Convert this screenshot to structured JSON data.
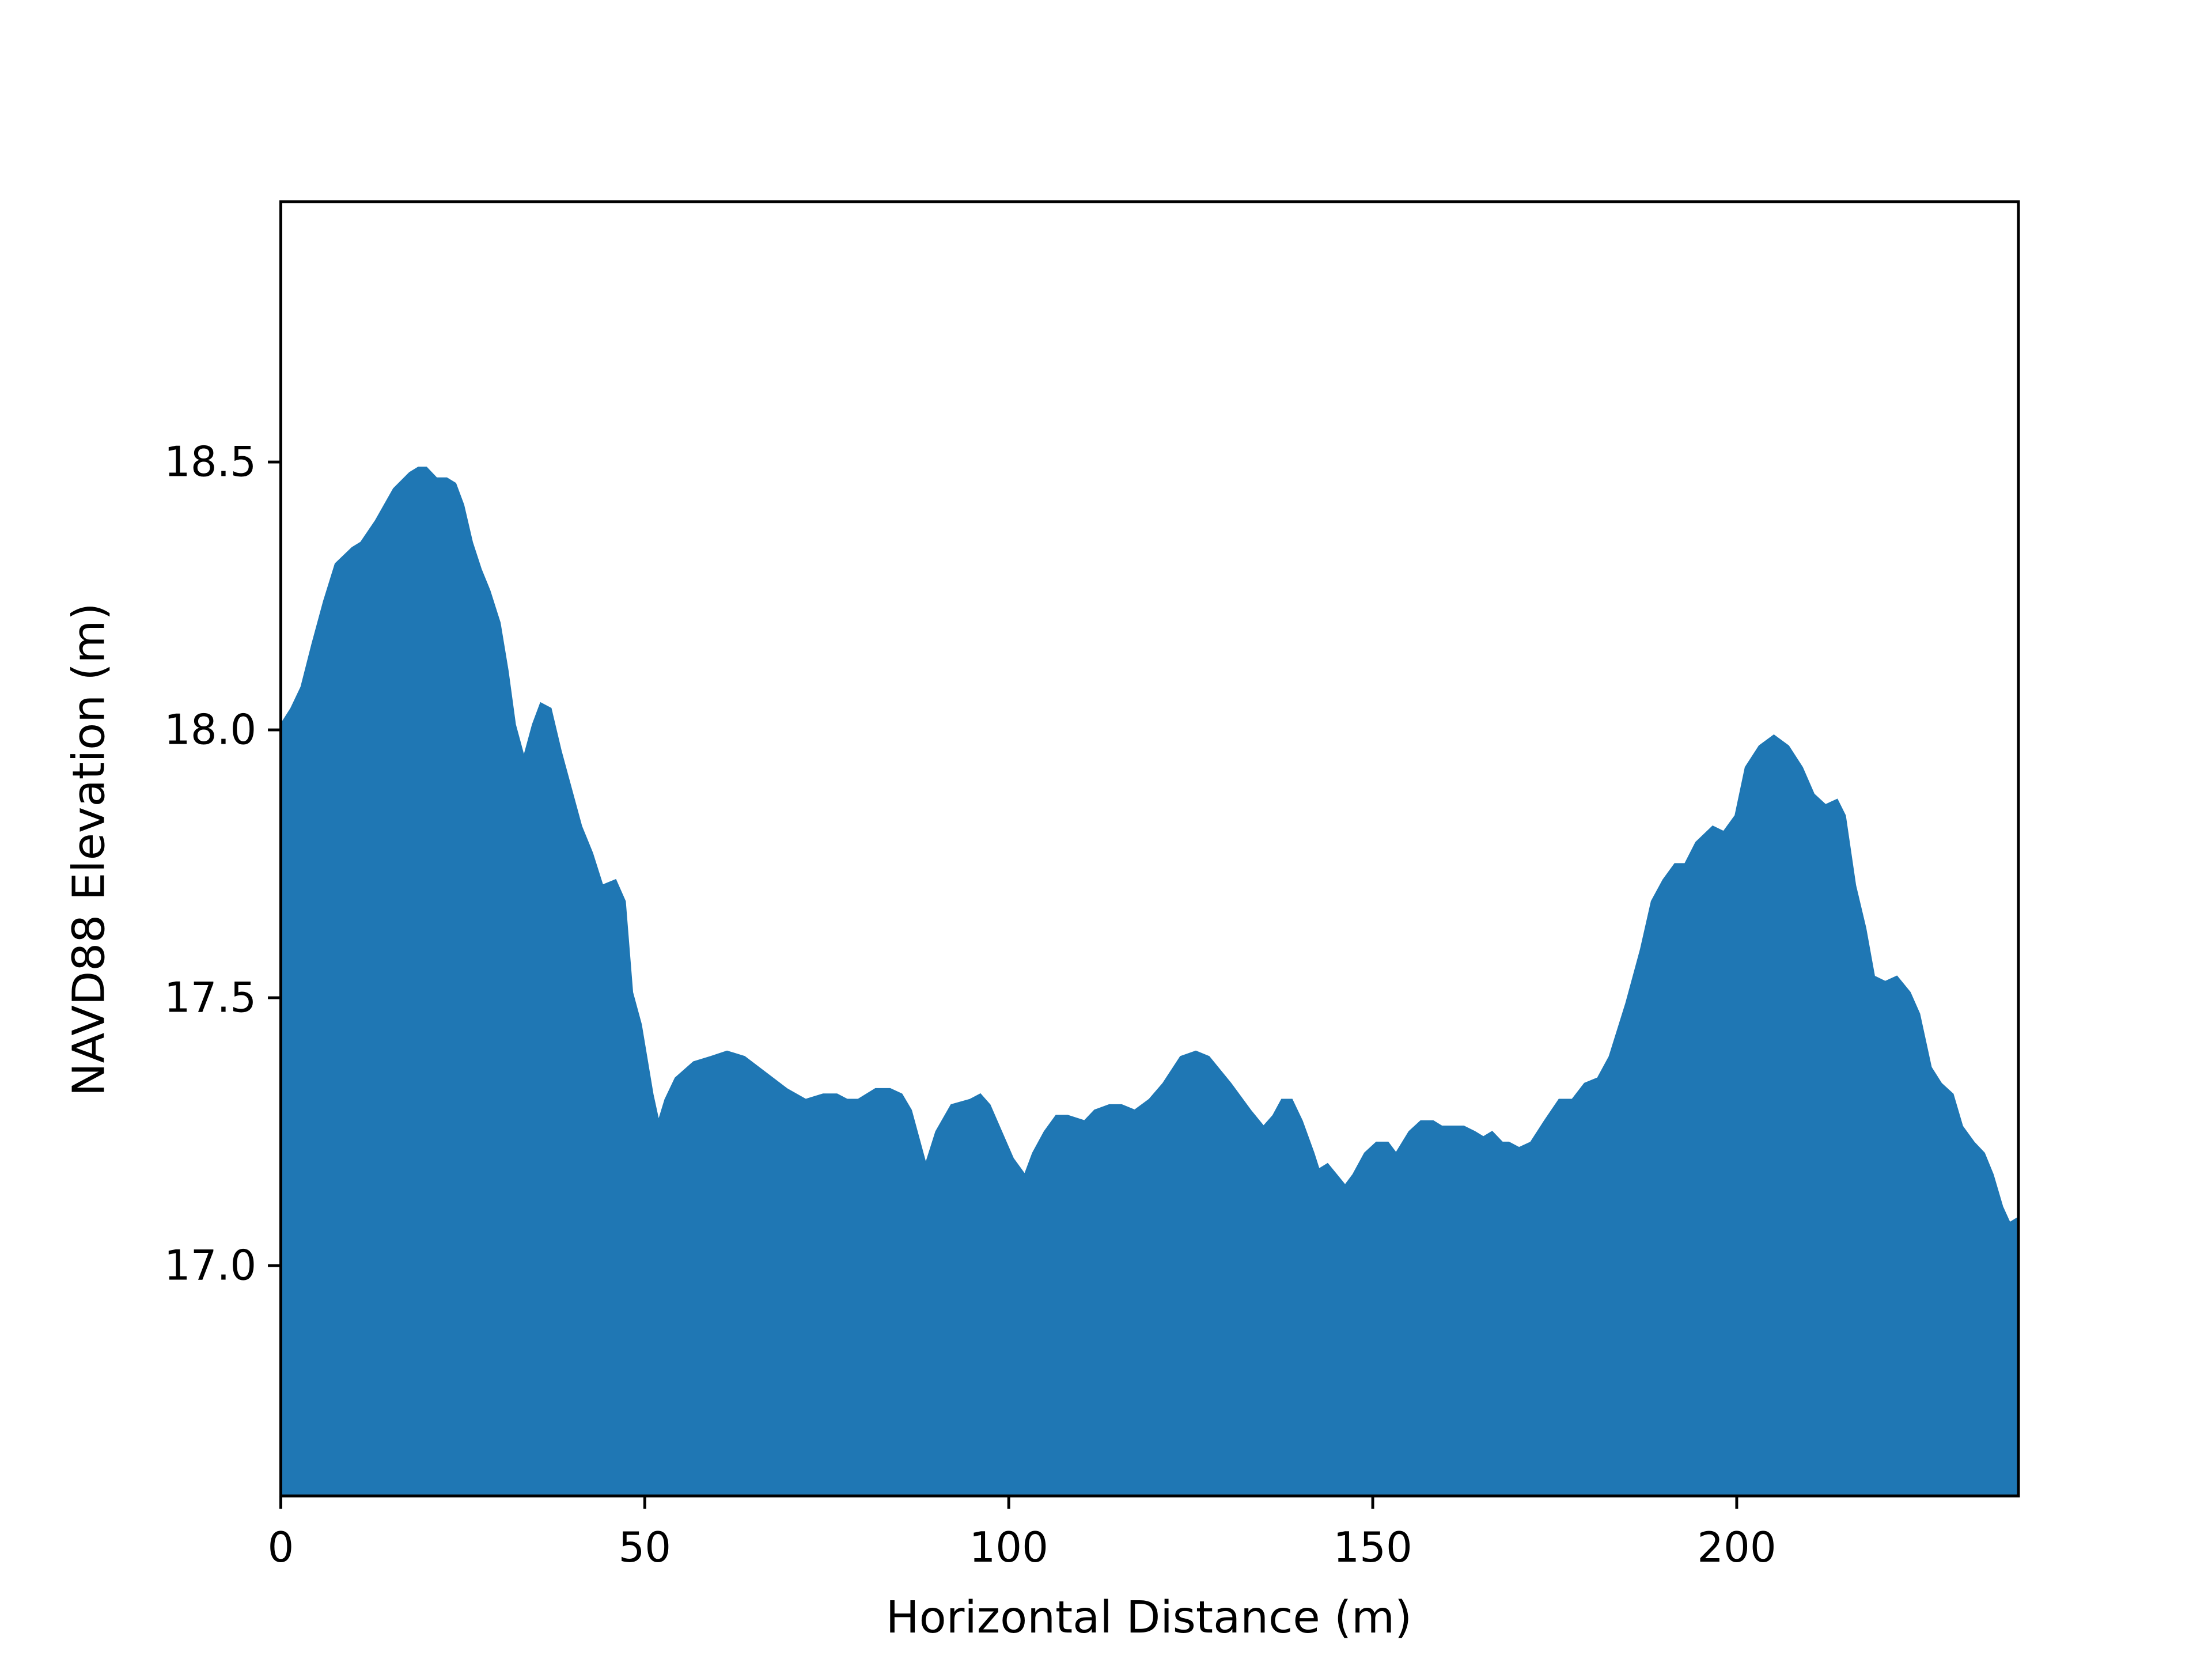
{
  "chart_data": {
    "type": "area",
    "xlabel": "Horizontal Distance (m)",
    "ylabel": "NAVD88 Elevation (m)",
    "color": "#1f77b4",
    "xlim": [
      0,
      238.7
    ],
    "ylim": [
      16.57,
      18.986
    ],
    "xticks": [
      0,
      50,
      100,
      150,
      200
    ],
    "yticks": [
      {
        "value": 17,
        "label": "17.0"
      },
      17.5,
      {
        "value": 18,
        "label": "18.0"
      },
      18.5
    ],
    "x": [
      0,
      1.4,
      2.8,
      4.3,
      5.9,
      7.5,
      9.8,
      11.0,
      13.0,
      15.5,
      17.7,
      18.9,
      20.0,
      21.4,
      22.8,
      24.0,
      25.1,
      26.3,
      27.5,
      28.7,
      30.1,
      31.2,
      32.2,
      33.4,
      34.6,
      35.7,
      37.1,
      38.5,
      39.9,
      41.3,
      42.8,
      44.2,
      46.0,
      47.3,
      48.3,
      49.5,
      51.1,
      51.9,
      52.8,
      54.2,
      56.7,
      59.1,
      61.3,
      63.7,
      66.6,
      69.5,
      72.1,
      74.5,
      76.4,
      77.8,
      79.3,
      81.7,
      83.7,
      85.3,
      86.6,
      88.0,
      88.6,
      90.0,
      92.1,
      94.7,
      96.1,
      97.4,
      99.0,
      100.6,
      102.2,
      103.3,
      104.9,
      106.5,
      108.1,
      110.4,
      111.8,
      113.8,
      115.5,
      117.3,
      119.3,
      121.2,
      123.6,
      125.7,
      127.5,
      130.5,
      133.2,
      135.0,
      136.3,
      137.5,
      138.9,
      140.3,
      141.9,
      142.6,
      143.8,
      145.0,
      146.2,
      147.3,
      148.9,
      150.5,
      152.1,
      153.2,
      155.0,
      156.6,
      158.3,
      159.5,
      160.9,
      162.5,
      164.0,
      165.2,
      166.4,
      167.8,
      168.7,
      170.1,
      171.7,
      173.6,
      175.6,
      177.4,
      179.1,
      180.9,
      182.5,
      184.8,
      186.8,
      188.3,
      189.9,
      191.5,
      192.9,
      194.4,
      196.7,
      198.2,
      199.8,
      201.2,
      203.1,
      205.1,
      207.1,
      209.0,
      210.6,
      212.2,
      213.8,
      214.9,
      216.3,
      217.7,
      218.9,
      220.4,
      222.0,
      223.8,
      225.1,
      226.7,
      228.1,
      229.7,
      231.0,
      232.6,
      234.0,
      235.2,
      236.5,
      237.5,
      238.7
    ],
    "values": [
      18.01,
      18.04,
      18.08,
      18.16,
      18.24,
      18.31,
      18.34,
      18.35,
      18.39,
      18.45,
      18.48,
      18.49,
      18.49,
      18.47,
      18.47,
      18.46,
      18.42,
      18.35,
      18.3,
      18.26,
      18.2,
      18.11,
      18.01,
      17.95,
      18.01,
      18.05,
      18.04,
      17.96,
      17.89,
      17.82,
      17.77,
      17.71,
      17.72,
      17.68,
      17.51,
      17.45,
      17.32,
      17.27,
      17.31,
      17.35,
      17.38,
      17.39,
      17.4,
      17.39,
      17.36,
      17.33,
      17.31,
      17.32,
      17.32,
      17.31,
      17.31,
      17.33,
      17.33,
      17.32,
      17.29,
      17.22,
      17.19,
      17.25,
      17.3,
      17.31,
      17.32,
      17.3,
      17.25,
      17.2,
      17.17,
      17.21,
      17.25,
      17.28,
      17.28,
      17.27,
      17.29,
      17.3,
      17.3,
      17.29,
      17.31,
      17.34,
      17.39,
      17.4,
      17.39,
      17.34,
      17.29,
      17.26,
      17.28,
      17.31,
      17.31,
      17.27,
      17.21,
      17.18,
      17.19,
      17.17,
      17.15,
      17.17,
      17.21,
      17.23,
      17.23,
      17.21,
      17.25,
      17.27,
      17.27,
      17.26,
      17.26,
      17.26,
      17.25,
      17.24,
      17.25,
      17.23,
      17.23,
      17.22,
      17.23,
      17.27,
      17.31,
      17.31,
      17.34,
      17.35,
      17.39,
      17.49,
      17.59,
      17.68,
      17.72,
      17.75,
      17.75,
      17.79,
      17.82,
      17.81,
      17.84,
      17.93,
      17.97,
      17.99,
      17.97,
      17.93,
      17.88,
      17.86,
      17.87,
      17.84,
      17.71,
      17.63,
      17.54,
      17.53,
      17.54,
      17.51,
      17.47,
      17.37,
      17.34,
      17.32,
      17.26,
      17.23,
      17.21,
      17.17,
      17.11,
      17.08,
      17.09
    ]
  }
}
